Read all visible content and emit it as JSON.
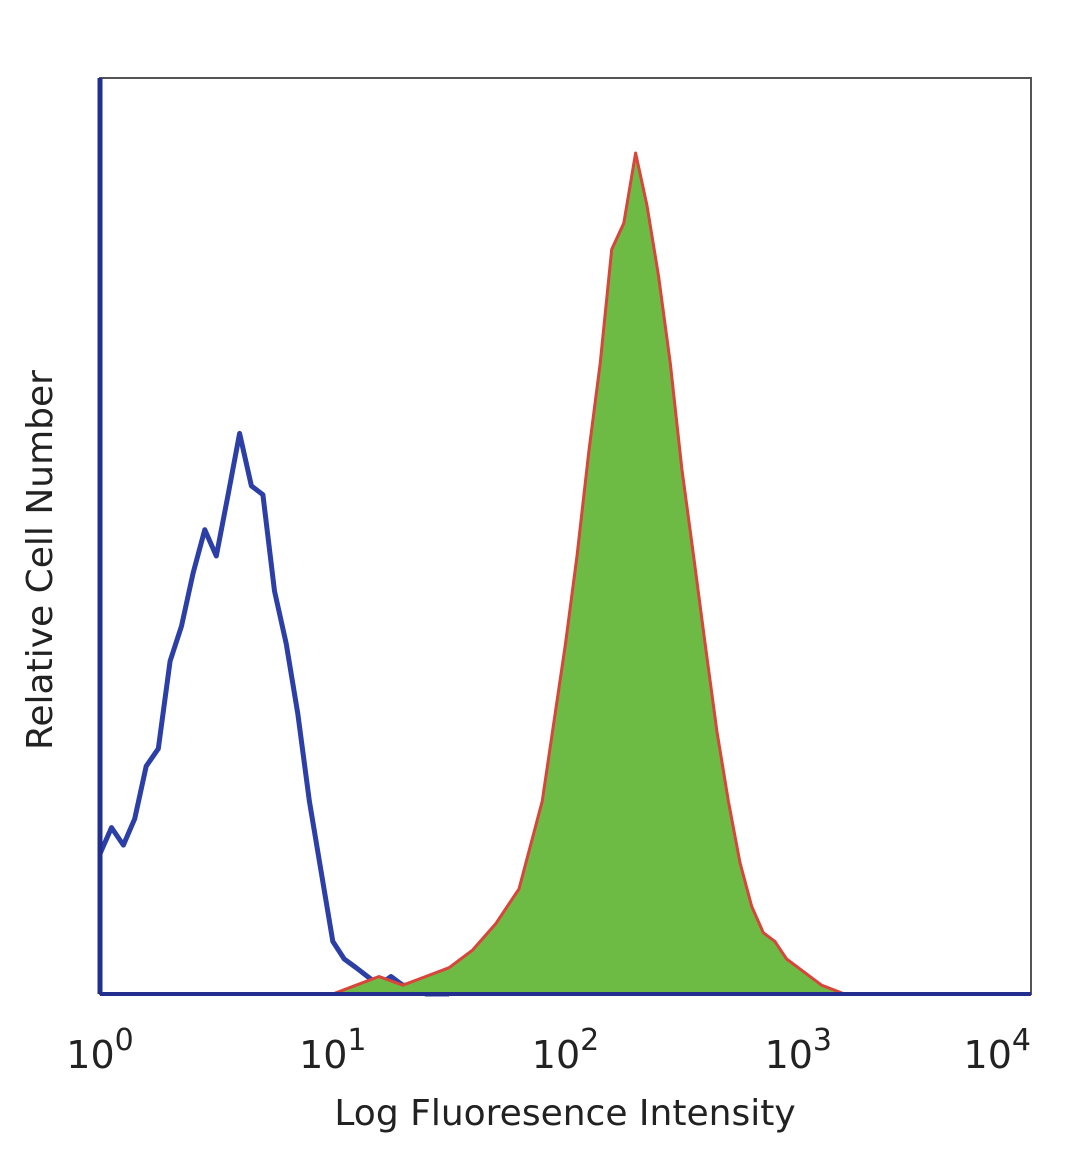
{
  "chart_data": {
    "type": "area",
    "title": "",
    "xlabel": "Log Fluoresence Intensity",
    "ylabel": "Relative Cell Number",
    "x_scale": "log",
    "xlim": [
      1,
      10000
    ],
    "ylim": [
      0,
      1
    ],
    "x_ticks": [
      {
        "value": 1,
        "base": "10",
        "exp": "0"
      },
      {
        "value": 10,
        "base": "10",
        "exp": "1"
      },
      {
        "value": 100,
        "base": "10",
        "exp": "2"
      },
      {
        "value": 1000,
        "base": "10",
        "exp": "3"
      },
      {
        "value": 10000,
        "base": "10",
        "exp": "4"
      }
    ],
    "grid": false,
    "legend": "none",
    "series": [
      {
        "style": "line",
        "color": "#2b3fa6",
        "x": [
          1.0,
          1.12,
          1.26,
          1.41,
          1.58,
          1.78,
          2.0,
          2.24,
          2.51,
          2.82,
          3.16,
          3.55,
          3.98,
          4.47,
          5.01,
          5.62,
          6.31,
          7.08,
          7.94,
          8.91,
          10.0,
          11.2,
          12.6,
          14.1,
          15.8,
          17.8,
          20.0,
          22.4,
          25.1,
          28.2,
          31.6
        ],
        "y": [
          0.16,
          0.19,
          0.17,
          0.2,
          0.26,
          0.28,
          0.38,
          0.42,
          0.48,
          0.53,
          0.5,
          0.57,
          0.64,
          0.58,
          0.57,
          0.46,
          0.4,
          0.32,
          0.22,
          0.14,
          0.06,
          0.04,
          0.03,
          0.02,
          0.01,
          0.02,
          0.01,
          0.01,
          0.0,
          0.0,
          0.0
        ]
      },
      {
        "style": "filled",
        "color": "#6dbb45",
        "outline": "#d9443b",
        "x": [
          10.0,
          12.6,
          15.8,
          20.0,
          25.1,
          31.6,
          39.8,
          50.1,
          63.1,
          79.4,
          100.0,
          112.0,
          126.0,
          141.0,
          158.0,
          178.0,
          200.0,
          224.0,
          251.0,
          282.0,
          316.0,
          355.0,
          398.0,
          447.0,
          501.0,
          562.0,
          631.0,
          708.0,
          794.0,
          891.0,
          1000.0,
          1260.0,
          1580.0
        ],
        "y": [
          0.0,
          0.01,
          0.02,
          0.01,
          0.02,
          0.03,
          0.05,
          0.08,
          0.12,
          0.22,
          0.4,
          0.5,
          0.62,
          0.72,
          0.85,
          0.88,
          0.96,
          0.9,
          0.82,
          0.72,
          0.6,
          0.5,
          0.4,
          0.3,
          0.22,
          0.15,
          0.1,
          0.07,
          0.06,
          0.04,
          0.03,
          0.01,
          0.0
        ]
      }
    ]
  }
}
